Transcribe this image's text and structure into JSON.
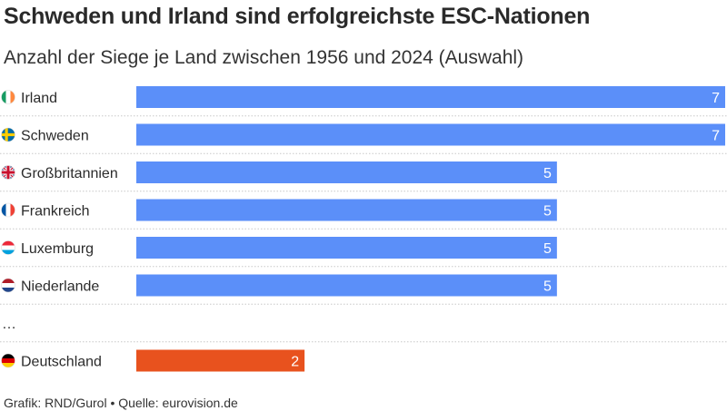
{
  "header": {
    "title": "Schweden und Irland sind erfolgreichste ESC-Nationen",
    "subtitle": "Anzahl der Siege je Land zwischen 1956 und 2024 (Auswahl)"
  },
  "footer": {
    "source": "Grafik: RND/Gurol • Quelle: eurovision.de"
  },
  "chart_data": {
    "type": "bar",
    "orientation": "horizontal",
    "categories": [
      "Irland",
      "Schweden",
      "Großbritannien",
      "Frankreich",
      "Luxemburg",
      "Niederlande",
      "…",
      "Deutschland"
    ],
    "values": [
      7,
      7,
      5,
      5,
      5,
      5,
      null,
      2
    ],
    "flags": [
      "ireland-flag-icon",
      "sweden-flag-icon",
      "uk-flag-icon",
      "france-flag-icon",
      "luxembourg-flag-icon",
      "netherlands-flag-icon",
      null,
      "germany-flag-icon"
    ],
    "colors": {
      "default": "#5b8ff9",
      "highlight": "#e8521e"
    },
    "highlight_index": 7,
    "xlim": [
      0,
      7
    ],
    "title": "Schweden und Irland sind erfolgreichste ESC-Nationen",
    "xlabel": "",
    "ylabel": ""
  }
}
